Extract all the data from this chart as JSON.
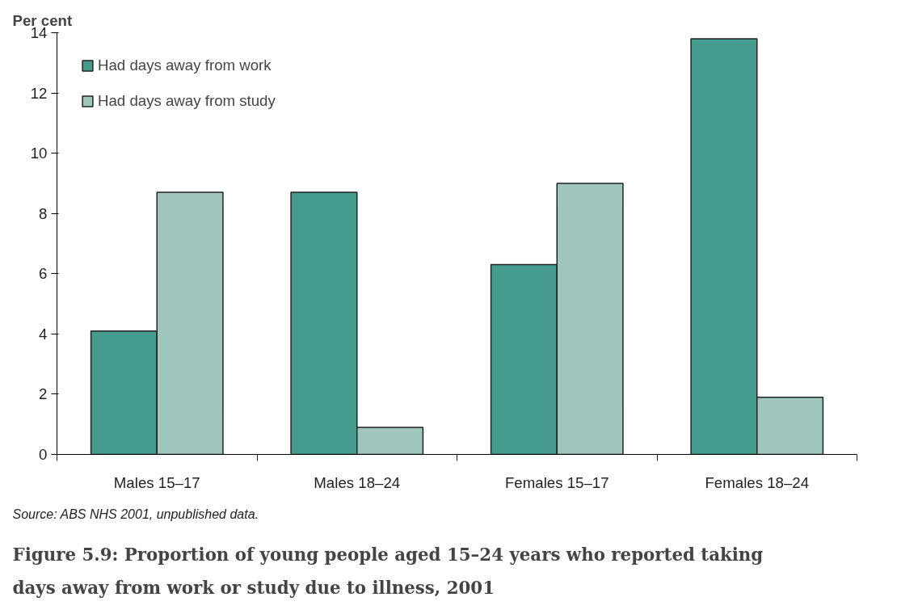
{
  "chart_data": {
    "type": "bar",
    "title": "Figure 5.9: Proportion of young people aged 15–24 years who reported taking days away from work or study due to illness, 2001",
    "ylabel": "Per cent",
    "categories": [
      "Males 15–17",
      "Males 18–24",
      "Females 15–17",
      "Females 18–24"
    ],
    "series": [
      {
        "name": "Had days away from work",
        "color": "#459b8e",
        "values": [
          4.1,
          8.7,
          6.3,
          13.8
        ]
      },
      {
        "name": "Had days away from study",
        "color": "#9fc6bd",
        "values": [
          8.7,
          0.9,
          9.0,
          1.9
        ]
      }
    ],
    "ylim": [
      0,
      14
    ],
    "yticks": [
      0,
      2,
      4,
      6,
      8,
      10,
      12,
      14
    ],
    "grid": false,
    "legend": "top left",
    "annotations": [
      "Source: ABS NHS 2001, unpublished data."
    ]
  }
}
